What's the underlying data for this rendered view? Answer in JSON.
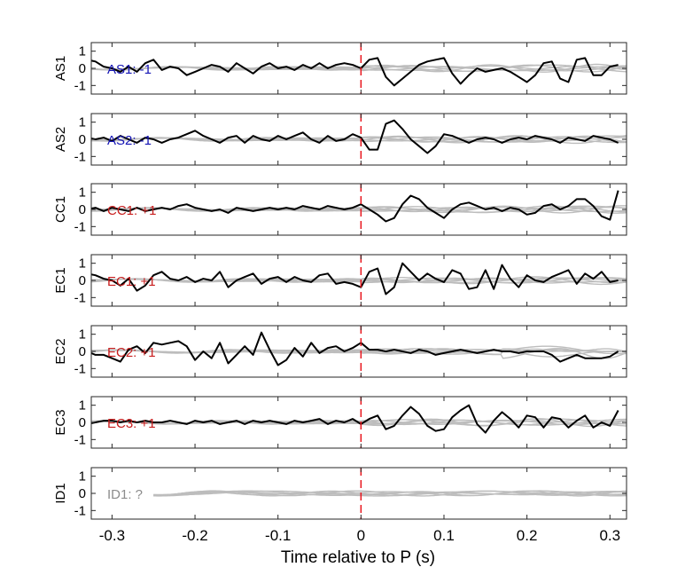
{
  "chart_data": {
    "type": "line",
    "xlabel": "Time relative to P (s)",
    "xlim": [
      -0.325,
      0.32
    ],
    "xticks": [
      -0.3,
      -0.2,
      -0.1,
      0,
      0.1,
      0.2,
      0.3
    ],
    "xtick_labels": [
      "-0.3",
      "-0.2",
      "-0.1",
      "0",
      "0.1",
      "0.2",
      "0.3"
    ],
    "ylim": [
      -1.5,
      1.5
    ],
    "yticks": [
      1,
      0,
      -1
    ],
    "ytick_labels": [
      "1",
      "0",
      "-1"
    ],
    "reference_line": {
      "x": 0,
      "color": "#e8141c",
      "style": "dashed"
    },
    "colors": {
      "main": "#000000",
      "gray": "#bdbdbd",
      "blue": "#1515b5",
      "red": "#c81e1e",
      "unknown": "#8c8c8c"
    },
    "panels": [
      {
        "ylabel": "AS1",
        "annotation": "AS1: -1",
        "annotation_color": "#1515b5",
        "main_x": [
          -0.33,
          -0.32,
          -0.31,
          -0.3,
          -0.29,
          -0.28,
          -0.27,
          -0.26,
          -0.25,
          -0.24,
          -0.23,
          -0.22,
          -0.21,
          -0.2,
          -0.19,
          -0.18,
          -0.17,
          -0.16,
          -0.15,
          -0.14,
          -0.13,
          -0.12,
          -0.11,
          -0.1,
          -0.09,
          -0.08,
          -0.07,
          -0.06,
          -0.05,
          -0.04,
          -0.03,
          -0.02,
          -0.01,
          0,
          0.01,
          0.02,
          0.03,
          0.04,
          0.05,
          0.06,
          0.07,
          0.08,
          0.09,
          0.1,
          0.11,
          0.12,
          0.13,
          0.14,
          0.15,
          0.16,
          0.17,
          0.18,
          0.19,
          0.2,
          0.21,
          0.22,
          0.23,
          0.24,
          0.25,
          0.26,
          0.27,
          0.28,
          0.29,
          0.3,
          0.31
        ],
        "main_y": [
          0.5,
          0.4,
          0.1,
          0.0,
          -0.2,
          0.1,
          -0.2,
          0.3,
          0.5,
          -0.1,
          0.1,
          0.0,
          -0.4,
          -0.2,
          0.0,
          0.2,
          0.1,
          -0.2,
          0.3,
          0.0,
          -0.3,
          0.1,
          0.3,
          0.0,
          0.1,
          -0.1,
          0.2,
          0.0,
          0.3,
          0.0,
          0.2,
          0.3,
          0.2,
          0.0,
          0.5,
          0.6,
          -0.5,
          -1.0,
          -0.6,
          -0.2,
          0.2,
          0.4,
          0.5,
          0.6,
          -0.3,
          -0.9,
          -0.4,
          0.0,
          -0.2,
          -0.1,
          0.0,
          -0.2,
          -0.5,
          -0.8,
          -0.4,
          0.3,
          0.4,
          -0.6,
          -0.8,
          0.5,
          0.6,
          -0.4,
          -0.4,
          0.1,
          0.2
        ]
      },
      {
        "ylabel": "AS2",
        "annotation": "AS2: -1",
        "annotation_color": "#1515b5",
        "main_x": [
          -0.33,
          -0.32,
          -0.31,
          -0.3,
          -0.29,
          -0.28,
          -0.27,
          -0.26,
          -0.25,
          -0.24,
          -0.23,
          -0.22,
          -0.21,
          -0.2,
          -0.19,
          -0.18,
          -0.17,
          -0.16,
          -0.15,
          -0.14,
          -0.13,
          -0.12,
          -0.11,
          -0.1,
          -0.09,
          -0.08,
          -0.07,
          -0.06,
          -0.05,
          -0.04,
          -0.03,
          -0.02,
          -0.01,
          0,
          0.01,
          0.02,
          0.03,
          0.04,
          0.05,
          0.06,
          0.07,
          0.08,
          0.09,
          0.1,
          0.11,
          0.12,
          0.13,
          0.14,
          0.15,
          0.16,
          0.17,
          0.18,
          0.19,
          0.2,
          0.21,
          0.22,
          0.23,
          0.24,
          0.25,
          0.26,
          0.27,
          0.28,
          0.29,
          0.3,
          0.31
        ],
        "main_y": [
          0.1,
          0.0,
          0.1,
          -0.1,
          0.2,
          0.0,
          -0.2,
          0.1,
          0.0,
          -0.2,
          0.0,
          0.1,
          0.3,
          0.5,
          0.2,
          0.0,
          -0.2,
          0.1,
          0.2,
          -0.2,
          0.2,
          0.0,
          -0.1,
          0.2,
          0.0,
          0.2,
          0.4,
          0.0,
          -0.2,
          0.2,
          -0.1,
          0.0,
          0.3,
          0.1,
          -0.6,
          -0.6,
          0.9,
          1.1,
          0.6,
          0.0,
          -0.4,
          -0.8,
          -0.4,
          0.3,
          0.2,
          0.0,
          -0.2,
          0.0,
          0.1,
          0.0,
          -0.2,
          0.0,
          0.1,
          0.0,
          0.2,
          0.1,
          0.0,
          -0.2,
          0.1,
          0.0,
          -0.1,
          0.2,
          0.1,
          0.0,
          -0.2
        ]
      },
      {
        "ylabel": "CC1",
        "annotation": "CC1: +1",
        "annotation_color": "#c81e1e",
        "main_x": [
          -0.33,
          -0.32,
          -0.31,
          -0.3,
          -0.29,
          -0.28,
          -0.27,
          -0.26,
          -0.25,
          -0.24,
          -0.23,
          -0.22,
          -0.21,
          -0.2,
          -0.19,
          -0.18,
          -0.17,
          -0.16,
          -0.15,
          -0.14,
          -0.13,
          -0.12,
          -0.11,
          -0.1,
          -0.09,
          -0.08,
          -0.07,
          -0.06,
          -0.05,
          -0.04,
          -0.03,
          -0.02,
          -0.01,
          0,
          0.01,
          0.02,
          0.03,
          0.04,
          0.05,
          0.06,
          0.07,
          0.08,
          0.09,
          0.1,
          0.11,
          0.12,
          0.13,
          0.14,
          0.15,
          0.16,
          0.17,
          0.18,
          0.19,
          0.2,
          0.21,
          0.22,
          0.23,
          0.24,
          0.25,
          0.26,
          0.27,
          0.28,
          0.29,
          0.3,
          0.31
        ],
        "main_y": [
          0.0,
          0.1,
          -0.1,
          0.1,
          0.0,
          -0.1,
          0.1,
          -0.1,
          0.0,
          0.1,
          0.0,
          0.2,
          0.3,
          0.1,
          0.0,
          -0.1,
          0.0,
          -0.2,
          0.1,
          0.0,
          -0.1,
          0.0,
          0.1,
          0.0,
          0.1,
          0.0,
          0.2,
          0.1,
          0.0,
          0.2,
          0.1,
          0.0,
          0.1,
          0.3,
          0.0,
          -0.3,
          -0.7,
          -0.5,
          0.3,
          0.8,
          0.6,
          0.1,
          -0.2,
          -0.5,
          0.0,
          0.3,
          0.4,
          0.2,
          0.0,
          0.1,
          -0.1,
          0.1,
          0.0,
          -0.3,
          -0.2,
          0.2,
          0.3,
          0.0,
          0.2,
          0.6,
          0.6,
          0.2,
          -0.4,
          -0.6,
          1.1
        ]
      },
      {
        "ylabel": "EC1",
        "annotation": "EC1: +1",
        "annotation_color": "#c81e1e",
        "main_x": [
          -0.33,
          -0.32,
          -0.31,
          -0.3,
          -0.29,
          -0.28,
          -0.27,
          -0.26,
          -0.25,
          -0.24,
          -0.23,
          -0.22,
          -0.21,
          -0.2,
          -0.19,
          -0.18,
          -0.17,
          -0.16,
          -0.15,
          -0.14,
          -0.13,
          -0.12,
          -0.11,
          -0.1,
          -0.09,
          -0.08,
          -0.07,
          -0.06,
          -0.05,
          -0.04,
          -0.03,
          -0.02,
          -0.01,
          0,
          0.01,
          0.02,
          0.03,
          0.04,
          0.05,
          0.06,
          0.07,
          0.08,
          0.09,
          0.1,
          0.11,
          0.12,
          0.13,
          0.14,
          0.15,
          0.16,
          0.17,
          0.18,
          0.19,
          0.2,
          0.21,
          0.22,
          0.23,
          0.24,
          0.25,
          0.26,
          0.27,
          0.28,
          0.29,
          0.3,
          0.31
        ],
        "main_y": [
          0.4,
          0.3,
          0.1,
          0.0,
          -0.3,
          0.1,
          -0.6,
          -0.3,
          0.3,
          0.5,
          0.1,
          0.0,
          0.2,
          -0.1,
          0.1,
          0.0,
          0.5,
          -0.4,
          0.0,
          0.2,
          0.4,
          -0.2,
          0.1,
          0.2,
          -0.1,
          0.2,
          0.0,
          -0.1,
          0.3,
          0.4,
          -0.2,
          -0.1,
          -0.2,
          -0.4,
          0.5,
          0.7,
          -0.8,
          -0.4,
          1.0,
          0.5,
          0.0,
          0.4,
          0.1,
          -0.1,
          0.6,
          0.4,
          -0.5,
          -0.4,
          0.6,
          -0.5,
          0.9,
          0.1,
          -0.4,
          0.3,
          0.0,
          -0.1,
          0.2,
          0.4,
          0.6,
          -0.2,
          0.4,
          0.1,
          0.5,
          -0.1,
          0.0
        ]
      },
      {
        "ylabel": "EC2",
        "annotation": "EC2: +1",
        "annotation_color": "#c81e1e",
        "main_x": [
          -0.33,
          -0.32,
          -0.31,
          -0.3,
          -0.29,
          -0.28,
          -0.27,
          -0.26,
          -0.25,
          -0.24,
          -0.23,
          -0.22,
          -0.21,
          -0.2,
          -0.19,
          -0.18,
          -0.17,
          -0.16,
          -0.15,
          -0.14,
          -0.13,
          -0.12,
          -0.11,
          -0.1,
          -0.09,
          -0.08,
          -0.07,
          -0.06,
          -0.05,
          -0.04,
          -0.03,
          -0.02,
          -0.01,
          0,
          0.01,
          0.02,
          0.03,
          0.04,
          0.05,
          0.06,
          0.07,
          0.08,
          0.09,
          0.1,
          0.11,
          0.12,
          0.13,
          0.14,
          0.15,
          0.16,
          0.17,
          0.18,
          0.19,
          0.2,
          0.21,
          0.22,
          0.23,
          0.24,
          0.25,
          0.26,
          0.27,
          0.28,
          0.29,
          0.3,
          0.31
        ],
        "main_y": [
          0.0,
          -0.2,
          -0.2,
          -0.4,
          -0.6,
          0.1,
          0.3,
          -0.1,
          0.5,
          0.4,
          0.5,
          0.6,
          0.3,
          -0.5,
          0.0,
          -0.4,
          0.5,
          -0.7,
          -0.2,
          0.3,
          -0.2,
          1.1,
          0.1,
          -0.8,
          -0.5,
          0.2,
          -0.3,
          0.5,
          -0.1,
          0.2,
          0.3,
          0.0,
          0.2,
          0.5,
          0.1,
          0.1,
          0.0,
          0.1,
          0.0,
          -0.1,
          0.1,
          0.0,
          -0.2,
          -0.1,
          0.0,
          0.1,
          0.0,
          -0.1,
          0.0,
          0.1,
          0.0,
          0.0,
          -0.1,
          0.0,
          0.0,
          0.0,
          -0.2,
          -0.6,
          -0.4,
          -0.2,
          -0.4,
          -0.4,
          -0.4,
          -0.3,
          0.0
        ]
      },
      {
        "ylabel": "EC3",
        "annotation": "EC3: +1",
        "annotation_color": "#c81e1e",
        "main_x": [
          -0.33,
          -0.32,
          -0.31,
          -0.3,
          -0.29,
          -0.28,
          -0.27,
          -0.26,
          -0.25,
          -0.24,
          -0.23,
          -0.22,
          -0.21,
          -0.2,
          -0.19,
          -0.18,
          -0.17,
          -0.16,
          -0.15,
          -0.14,
          -0.13,
          -0.12,
          -0.11,
          -0.1,
          -0.09,
          -0.08,
          -0.07,
          -0.06,
          -0.05,
          -0.04,
          -0.03,
          -0.02,
          -0.01,
          0,
          0.01,
          0.02,
          0.03,
          0.04,
          0.05,
          0.06,
          0.07,
          0.08,
          0.09,
          0.1,
          0.11,
          0.12,
          0.13,
          0.14,
          0.15,
          0.16,
          0.17,
          0.18,
          0.19,
          0.2,
          0.21,
          0.22,
          0.23,
          0.24,
          0.25,
          0.26,
          0.27,
          0.28,
          0.29,
          0.3,
          0.31
        ],
        "main_y": [
          -0.1,
          0.0,
          0.1,
          0.1,
          0.0,
          0.1,
          0.0,
          0.1,
          0.0,
          0.0,
          0.1,
          0.0,
          -0.1,
          0.1,
          0.0,
          0.1,
          -0.1,
          0.0,
          0.1,
          -0.1,
          0.1,
          0.0,
          0.1,
          0.0,
          -0.1,
          0.1,
          0.0,
          0.1,
          0.2,
          -0.1,
          0.1,
          0.0,
          0.2,
          -0.1,
          0.2,
          0.4,
          -0.4,
          -0.2,
          0.4,
          0.9,
          0.5,
          -0.2,
          -0.5,
          -0.4,
          0.3,
          0.7,
          1.0,
          -0.1,
          -0.6,
          0.1,
          0.6,
          0.2,
          -0.3,
          0.4,
          0.3,
          -0.3,
          0.3,
          0.2,
          -0.3,
          0.1,
          0.4,
          -0.3,
          0.0,
          -0.2,
          0.7
        ]
      },
      {
        "ylabel": "ID1",
        "annotation": "ID1: ?",
        "annotation_color": "#8c8c8c",
        "main_x": [],
        "main_y": []
      }
    ]
  }
}
